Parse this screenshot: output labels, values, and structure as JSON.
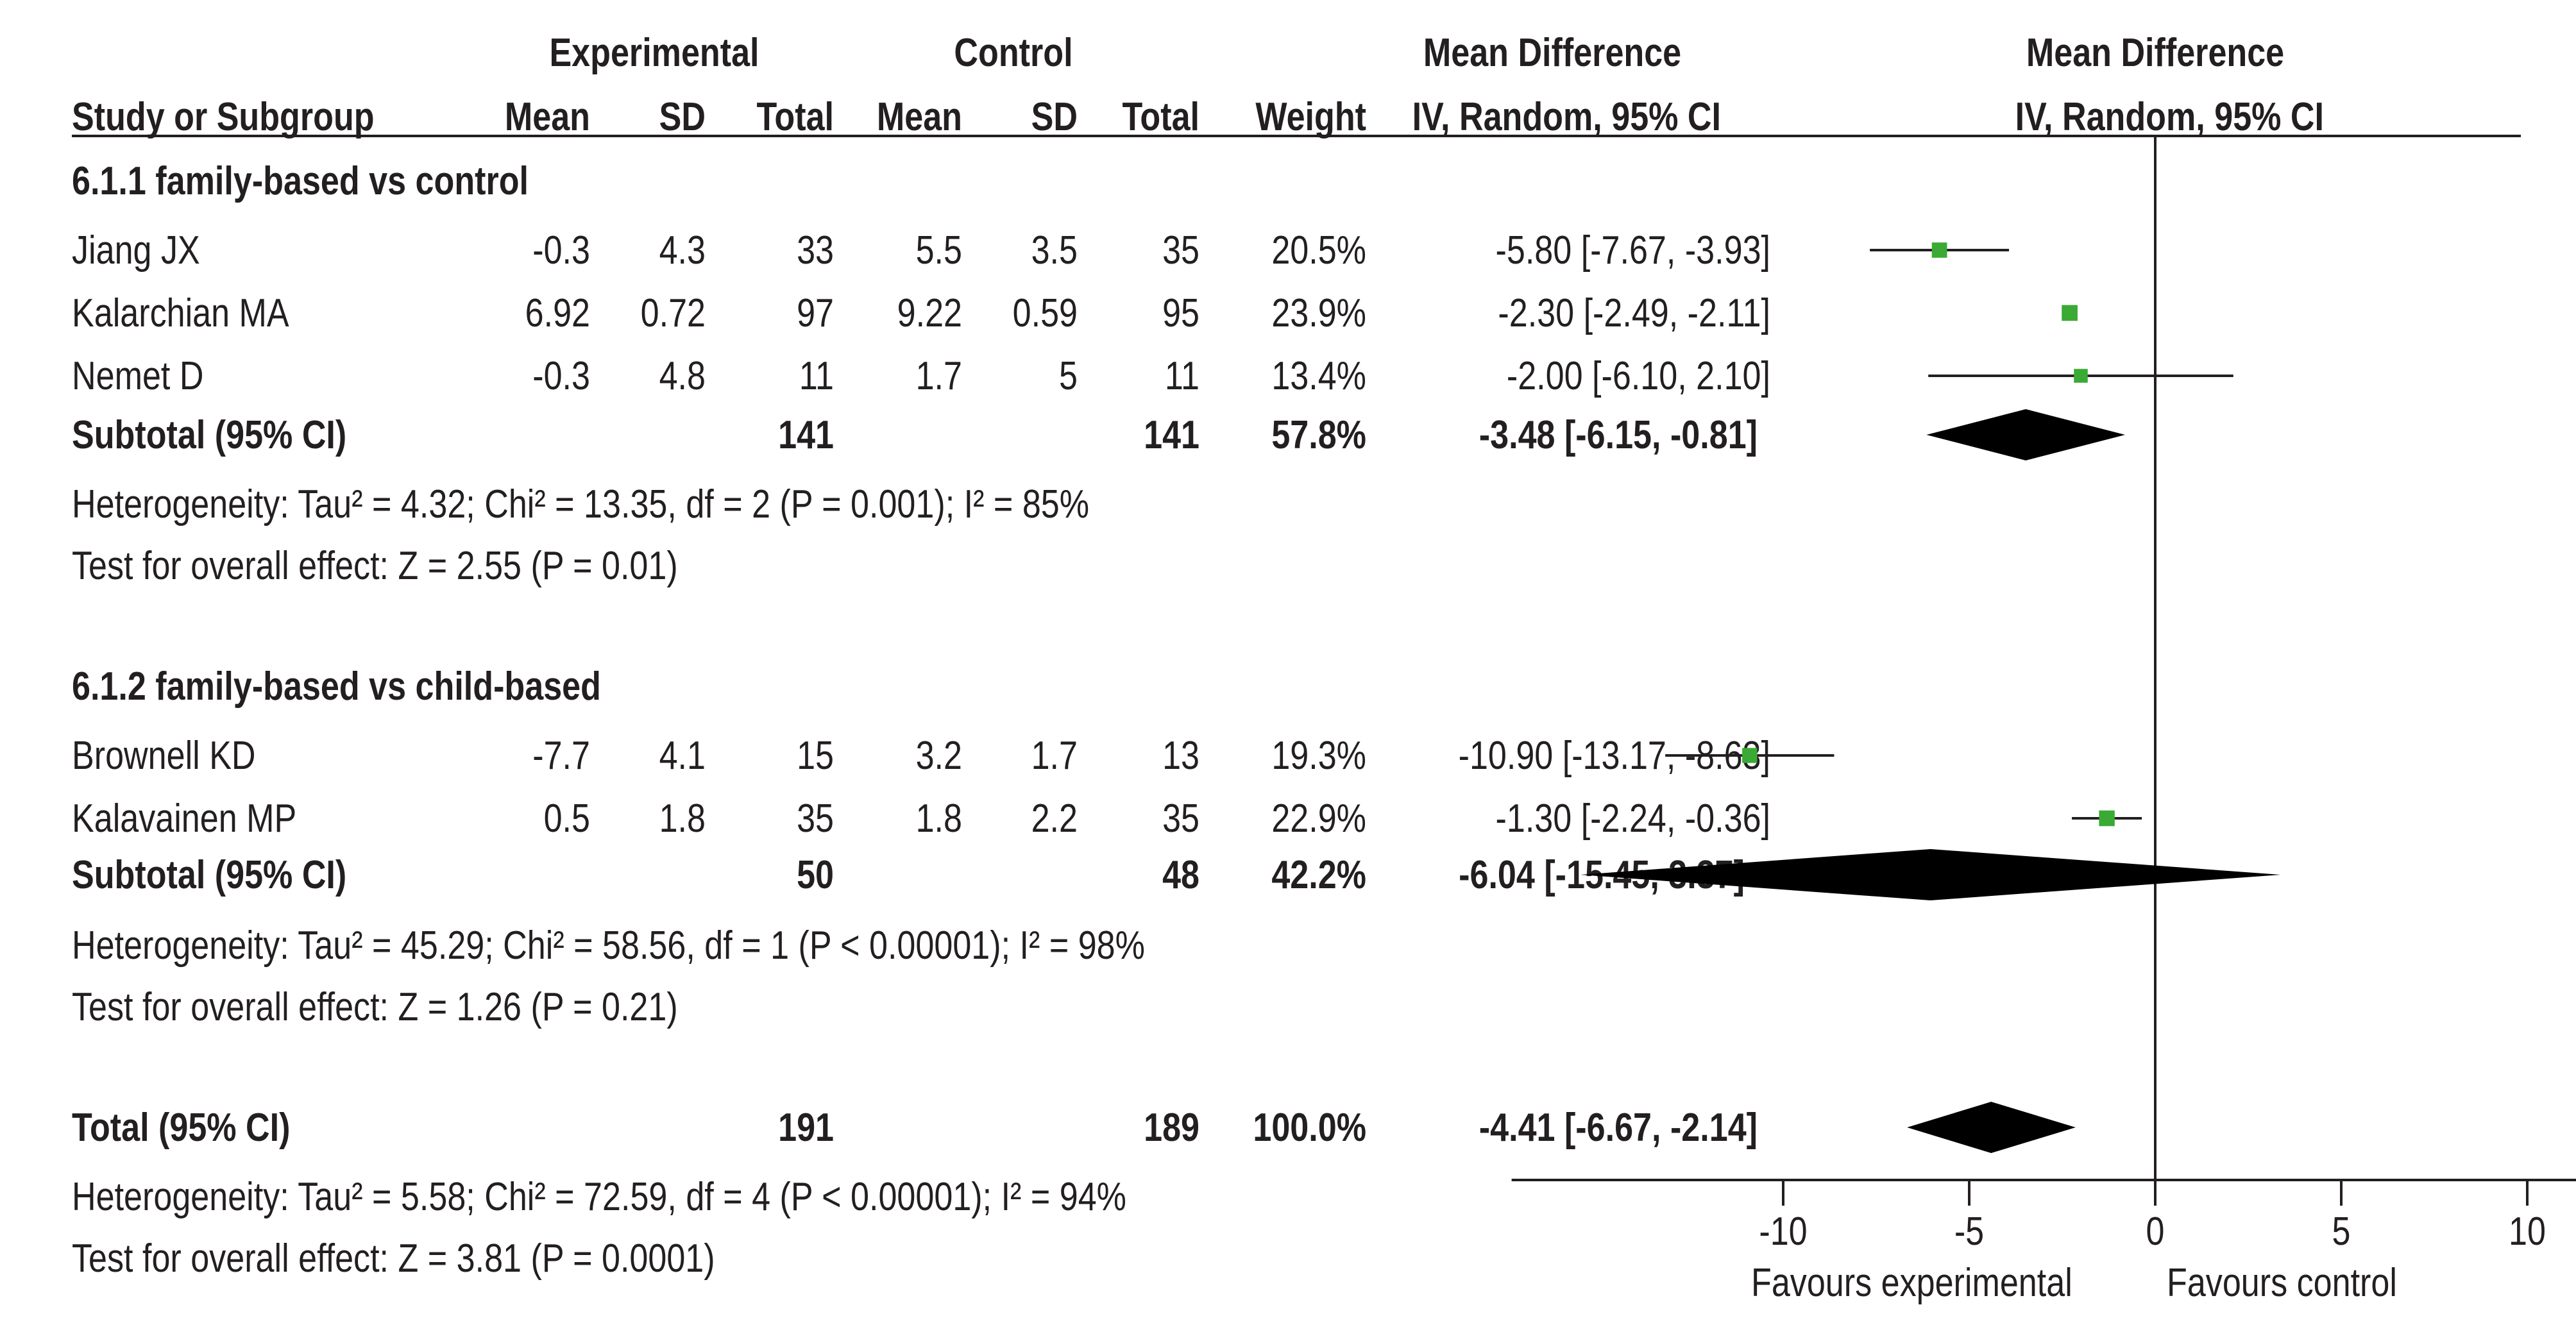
{
  "headers": {
    "group_experimental": "Experimental",
    "group_control": "Control",
    "group_md": "Mean Difference",
    "group_md_plot": "Mean Difference",
    "study": "Study or Subgroup",
    "exp_mean": "Mean",
    "exp_sd": "SD",
    "exp_total": "Total",
    "ctl_mean": "Mean",
    "ctl_sd": "SD",
    "ctl_total": "Total",
    "weight": "Weight",
    "md_method": "IV, Random, 95% CI",
    "md_method_plot": "IV, Random, 95% CI"
  },
  "subgroups": [
    {
      "title": "6.1.1 family-based vs control",
      "studies": [
        {
          "name": "Jiang JX",
          "exp_mean": "-0.3",
          "exp_sd": "4.3",
          "exp_total": "33",
          "ctl_mean": "5.5",
          "ctl_sd": "3.5",
          "ctl_total": "35",
          "weight": "20.5%",
          "ci_text": "-5.80 [-7.67, -3.93]"
        },
        {
          "name": "Kalarchian MA",
          "exp_mean": "6.92",
          "exp_sd": "0.72",
          "exp_total": "97",
          "ctl_mean": "9.22",
          "ctl_sd": "0.59",
          "ctl_total": "95",
          "weight": "23.9%",
          "ci_text": "-2.30 [-2.49, -2.11]"
        },
        {
          "name": "Nemet D",
          "exp_mean": "-0.3",
          "exp_sd": "4.8",
          "exp_total": "11",
          "ctl_mean": "1.7",
          "ctl_sd": "5",
          "ctl_total": "11",
          "weight": "13.4%",
          "ci_text": "-2.00 [-6.10, 2.10]"
        }
      ],
      "subtotal": {
        "label": "Subtotal (95% CI)",
        "exp_total": "141",
        "ctl_total": "141",
        "weight": "57.8%",
        "ci_text": "-3.48 [-6.15, -0.81]"
      },
      "heterogeneity": "Heterogeneity: Tau² = 4.32; Chi² = 13.35, df = 2 (P = 0.001); I² = 85%",
      "overall": "Test for overall effect: Z = 2.55 (P = 0.01)"
    },
    {
      "title": "6.1.2 family-based vs child-based",
      "studies": [
        {
          "name": "Brownell KD",
          "exp_mean": "-7.7",
          "exp_sd": "4.1",
          "exp_total": "15",
          "ctl_mean": "3.2",
          "ctl_sd": "1.7",
          "ctl_total": "13",
          "weight": "19.3%",
          "ci_text": "-10.90 [-13.17, -8.63]"
        },
        {
          "name": "Kalavainen MP",
          "exp_mean": "0.5",
          "exp_sd": "1.8",
          "exp_total": "35",
          "ctl_mean": "1.8",
          "ctl_sd": "2.2",
          "ctl_total": "35",
          "weight": "22.9%",
          "ci_text": "-1.30 [-2.24, -0.36]"
        }
      ],
      "subtotal": {
        "label": "Subtotal (95% CI)",
        "exp_total": "50",
        "ctl_total": "48",
        "weight": "42.2%",
        "ci_text": "-6.04 [-15.45, 3.37]"
      },
      "heterogeneity": "Heterogeneity: Tau² = 45.29; Chi² = 58.56, df = 1 (P < 0.00001); I² = 98%",
      "overall": "Test for overall effect: Z = 1.26 (P = 0.21)"
    }
  ],
  "total": {
    "label": "Total (95% CI)",
    "exp_total": "191",
    "ctl_total": "189",
    "weight": "100.0%",
    "ci_text": "-4.41 [-6.67, -2.14]",
    "heterogeneity": "Heterogeneity: Tau² = 5.58; Chi² = 72.59, df = 4 (P < 0.00001); I² = 94%",
    "overall": "Test for overall effect: Z = 3.81 (P = 0.0001)"
  },
  "axis": {
    "tick_labels": [
      "-10",
      "-5",
      "0",
      "5",
      "10"
    ],
    "favours_left": "Favours experimental",
    "favours_right": "Favours control"
  },
  "colors": {
    "text": "#231f20",
    "marker": "#3aaa35",
    "diamond": "#000000"
  },
  "chart_data": {
    "type": "forest",
    "measure": "Mean Difference (IV, Random, 95% CI)",
    "x_range": [
      -17.3,
      19.3
    ],
    "ticks": [
      -10,
      -5,
      0,
      5,
      10
    ],
    "null_line": 0,
    "grid": false,
    "studies": [
      {
        "name": "Jiang JX",
        "md": -5.8,
        "lo": -7.67,
        "hi": -3.93,
        "weight": 20.5
      },
      {
        "name": "Kalarchian MA",
        "md": -2.3,
        "lo": -2.49,
        "hi": -2.11,
        "weight": 23.9
      },
      {
        "name": "Nemet D",
        "md": -2.0,
        "lo": -6.1,
        "hi": 2.1,
        "weight": 13.4
      },
      {
        "name": "Brownell KD",
        "md": -10.9,
        "lo": -13.17,
        "hi": -8.63,
        "weight": 19.3
      },
      {
        "name": "Kalavainen MP",
        "md": -1.3,
        "lo": -2.24,
        "hi": -0.36,
        "weight": 22.9
      }
    ],
    "summaries": [
      {
        "name": "Subtotal 6.1.1",
        "md": -3.48,
        "lo": -6.15,
        "hi": -0.81
      },
      {
        "name": "Subtotal 6.1.2",
        "md": -6.04,
        "lo": -15.45,
        "hi": 3.37
      },
      {
        "name": "Total",
        "md": -4.41,
        "lo": -6.67,
        "hi": -2.14
      }
    ]
  }
}
